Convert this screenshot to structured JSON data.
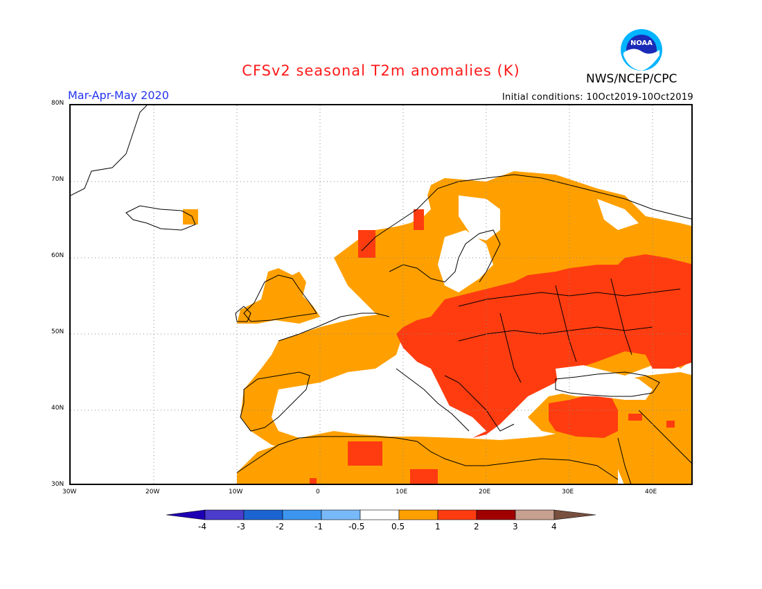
{
  "header": {
    "title": "CFSv2 seasonal T2m anomalies (K)",
    "period": "Mar-Apr-May 2020",
    "initial_conditions": "Initial conditions: 10Oct2019-10Oct2019",
    "agency": "NWS/NCEP/CPC",
    "logo_text": "NOAA"
  },
  "map": {
    "lat_range": [
      30,
      80
    ],
    "lon_range": [
      -30,
      45
    ],
    "lat_ticks": [
      "80N",
      "70N",
      "60N",
      "50N",
      "40N",
      "30N"
    ],
    "lon_ticks": [
      "30W",
      "20W",
      "10W",
      "0",
      "10E",
      "20E",
      "30E",
      "40E"
    ],
    "anomaly_colors": {
      "neutral": "#ffffff",
      "0.5-1": "#ffa000",
      "1-2": "#ff3c10",
      "2-3": "#a00000"
    }
  },
  "legend": {
    "labels": [
      "-4",
      "-3",
      "-2",
      "-1",
      "-0.5",
      "0.5",
      "1",
      "2",
      "3",
      "4"
    ],
    "colors": [
      "#1e00b4",
      "#4b3ccc",
      "#1c64d2",
      "#3c96f0",
      "#78b9fa",
      "#ffffff",
      "#ffa000",
      "#ff3c10",
      "#a00000",
      "#c8a090",
      "#785040"
    ]
  }
}
